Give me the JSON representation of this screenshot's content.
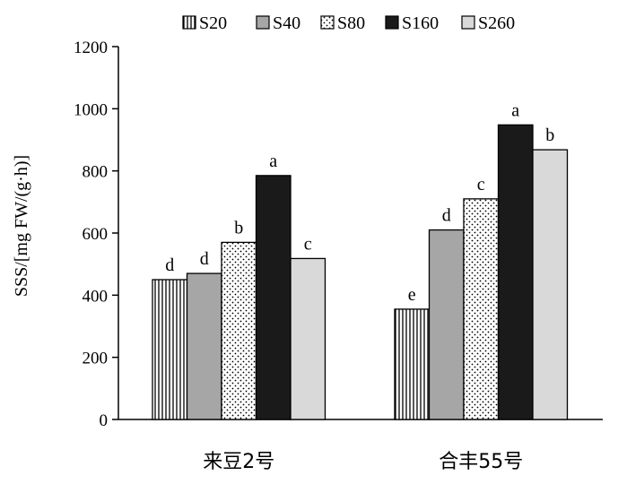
{
  "chart_data": {
    "type": "bar",
    "categories": [
      "来豆2号",
      "合丰55号"
    ],
    "series": [
      {
        "name": "S20",
        "values": [
          450,
          355
        ],
        "letters": [
          "d",
          "e"
        ],
        "pattern": "vlines"
      },
      {
        "name": "S40",
        "values": [
          470,
          610
        ],
        "letters": [
          "d",
          "d"
        ],
        "pattern": "gray"
      },
      {
        "name": "S80",
        "values": [
          570,
          710
        ],
        "letters": [
          "b",
          "c"
        ],
        "pattern": "dots"
      },
      {
        "name": "S160",
        "values": [
          785,
          948
        ],
        "letters": [
          "a",
          "a"
        ],
        "pattern": "black"
      },
      {
        "name": "S260",
        "values": [
          518,
          868
        ],
        "letters": [
          "c",
          "b"
        ],
        "pattern": "lightgray"
      }
    ],
    "ylabel": "SSS/[mg FW/(g·h)]",
    "xlabel": "",
    "ylim": [
      0,
      1200
    ],
    "yticks": [
      0,
      200,
      400,
      600,
      800,
      1000,
      1200
    ],
    "legend_position": "top",
    "grid": false
  },
  "colors": {
    "gray": "#a6a6a6",
    "lightgray": "#d9d9d9",
    "black": "#1a1a1a"
  }
}
